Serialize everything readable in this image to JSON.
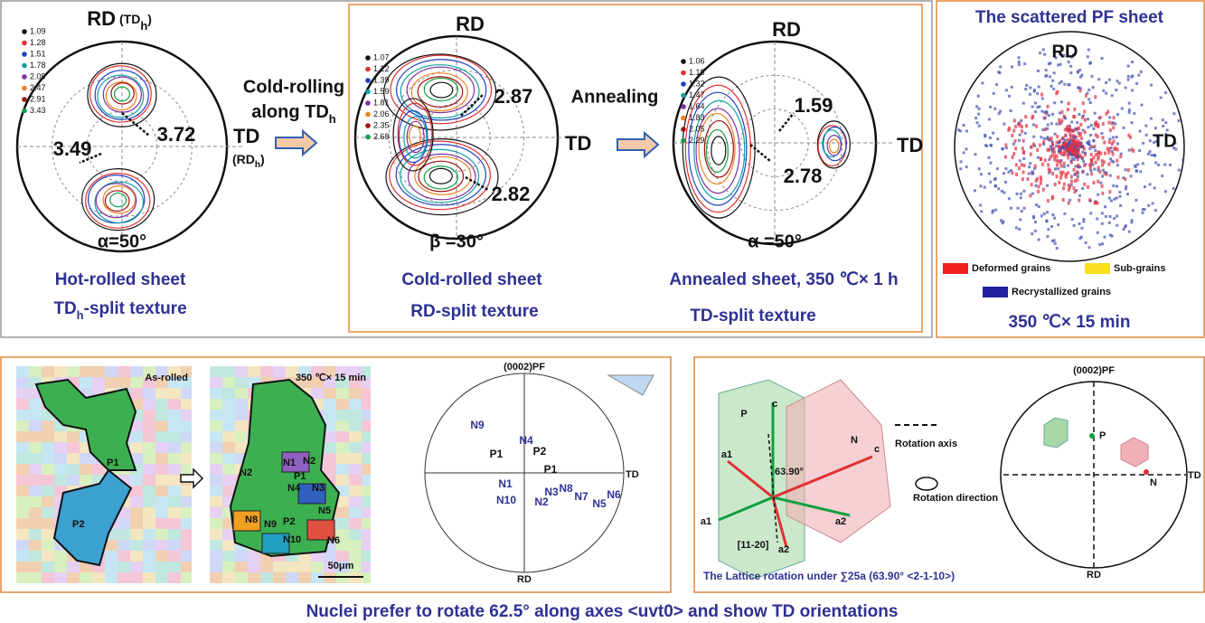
{
  "top": {
    "hot": {
      "rd": "RD",
      "rd_paren": [
        "(TD",
        "h",
        ")"
      ],
      "td": "TD",
      "td_paren": [
        "(RD",
        "h",
        ")"
      ],
      "legend": [
        "1.09",
        "1.28",
        "1.51",
        "1.78",
        "2.09",
        "2.47",
        "2.91",
        "3.43"
      ],
      "peak_right": "3.72",
      "peak_left": "3.49",
      "angle": "α=50°",
      "caption_1": "Hot-rolled sheet",
      "caption_2": [
        "TD",
        "h",
        "-split texture"
      ]
    },
    "arrow_1": [
      "Cold-rolling",
      "along TD",
      "h"
    ],
    "cold": {
      "rd": "RD",
      "td": "TD",
      "legend": [
        "1.07",
        "1.22",
        "1.39",
        "1.59",
        "1.81",
        "2.06",
        "2.35",
        "2.68"
      ],
      "peak_top": "2.87",
      "peak_bottom": "2.82",
      "angle": "β =30°",
      "caption_1": "Cold-rolled sheet",
      "caption_2": "RD-split texture"
    },
    "arrow_2": "Annealing",
    "annealed": {
      "rd": "RD",
      "td": "TD",
      "legend": [
        "1.06",
        "1.18",
        "1.32",
        "1.47",
        "1.64",
        "1.83",
        "2.05",
        "2.29"
      ],
      "peak_top": "1.59",
      "peak_center": "2.78",
      "angle": "α =50°",
      "caption_1": "Annealed sheet, 350 ℃× 1 h",
      "caption_2": "TD-split texture"
    },
    "scattered": {
      "title": "The scattered PF sheet",
      "rd": "RD",
      "td": "TD",
      "legend": [
        "Deformed grains",
        "Sub-grains",
        "Recrystallized grains"
      ],
      "condition": "350 ℃× 15 min"
    }
  },
  "bottom": {
    "map_1": {
      "title": "As-rolled",
      "labels": [
        "P1",
        "P2"
      ]
    },
    "map_2": {
      "title": "350 ℃× 15 min",
      "labels": [
        "N2",
        "N1",
        "N2",
        "P1",
        "N4",
        "N3",
        "N8",
        "N9",
        "P2",
        "N5",
        "N10",
        "N6"
      ],
      "scale": "50μm"
    },
    "pf": {
      "title": "(0002)PF",
      "td": "TD",
      "rd": "RD",
      "labels": [
        "N9",
        "N4",
        "P2",
        "P1",
        "P1",
        "N1",
        "N10",
        "N2",
        "N3",
        "N8",
        "N7",
        "N5",
        "N6"
      ]
    },
    "lattice": {
      "labels": [
        "P",
        "c",
        "N",
        "c",
        "a1",
        "a1",
        "a2",
        "a2",
        "63.90°",
        "[11-20]"
      ],
      "rotation_axis": "Rotation axis",
      "rotation_direction": "Rotation direction",
      "pf_title": "(0002)PF",
      "pf_p": "P",
      "pf_n": "N",
      "pf_td": "TD",
      "pf_rd": "RD",
      "caption": "The Lattice rotation under ∑25a (63.90°  <2-1-10>)"
    }
  },
  "footer": "Nuclei prefer to rotate 62.5°  along axes <uvt0> and show TD orientations"
}
